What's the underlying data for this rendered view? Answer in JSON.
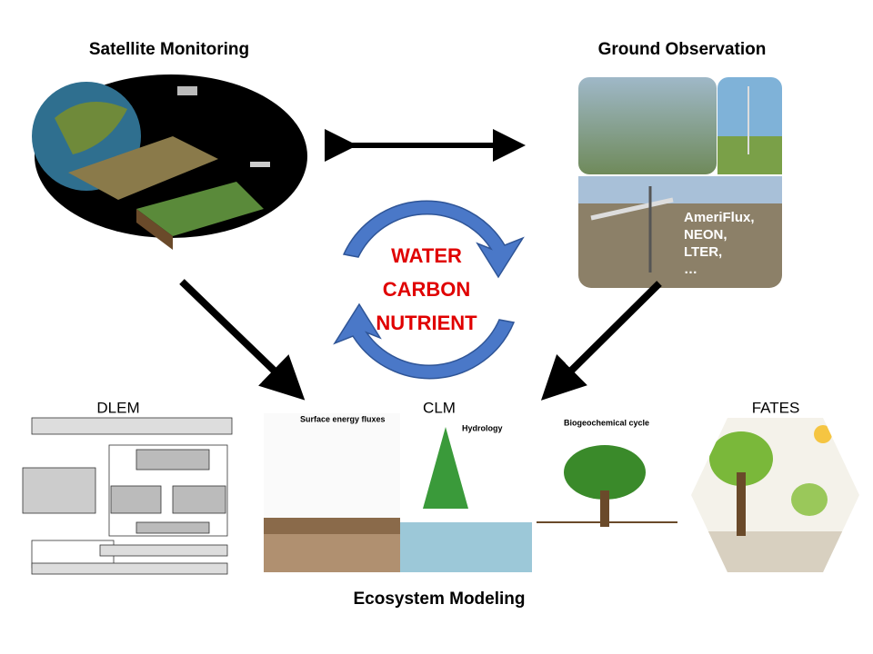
{
  "header": {
    "left": "Satellite Monitoring",
    "right": "Ground Observation"
  },
  "cycle": [
    "WATER",
    "CARBON",
    "NUTRIENT"
  ],
  "ground_networks": [
    "AmeriFlux,",
    "NEON,",
    "LTER,",
    "…"
  ],
  "models": [
    {
      "label": "DLEM"
    },
    {
      "label": "CLM",
      "panels": [
        "Surface energy fluxes",
        "Hydrology",
        "Biogeochemical cycle"
      ]
    },
    {
      "label": "FATES"
    }
  ],
  "footer": "Ecosystem Modeling"
}
